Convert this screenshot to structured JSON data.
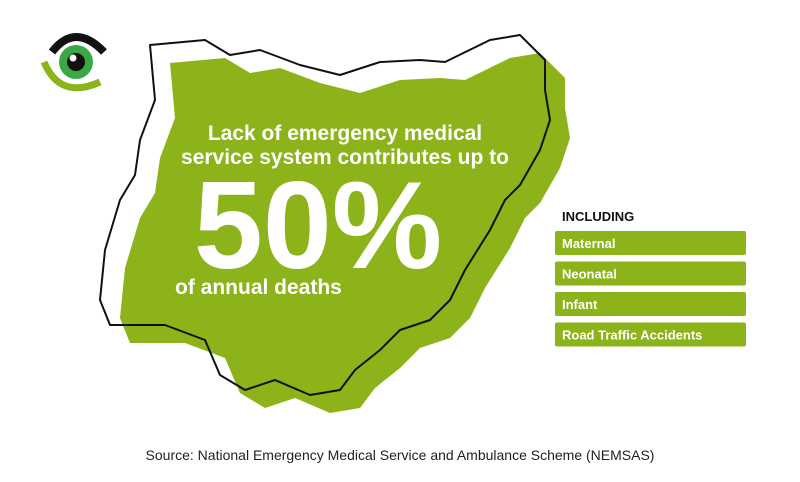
{
  "headline": {
    "line1": "Lack of emergency medical",
    "line2": "service system contributes up to",
    "figure": "50%",
    "line3": "of annual deaths"
  },
  "including": {
    "title": "INCLUDING",
    "items": [
      "Maternal",
      "Neonatal",
      "Infant",
      "Road Traffic Accidents"
    ]
  },
  "source": "Source: National Emergency Medical Service and Ambulance Scheme (NEMSAS)"
}
